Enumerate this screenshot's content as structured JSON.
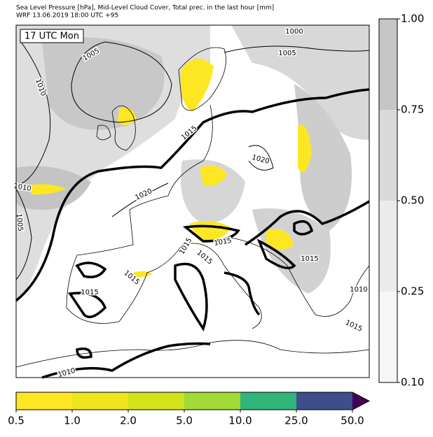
{
  "header": {
    "line1": "Sea Level Pressure [hPa], Mid-Level Cloud Cover, Total prec. in the last hour [mm]",
    "line2": "WRF 13.06.2019 18:00 UTC +95"
  },
  "time_label": "17 UTC Mon",
  "contour_labels": [
    "1005",
    "1010",
    "1000",
    "1005",
    "1015",
    "1020",
    "1010",
    "1005",
    "1020",
    "1015",
    "1015",
    "1015",
    "1015",
    "1015",
    "1015",
    "1010",
    "1015",
    "1010"
  ],
  "cloud_colorbar": {
    "ticks": [
      {
        "value": 0.1,
        "label": "0.10"
      },
      {
        "value": 0.25,
        "label": "0.25"
      },
      {
        "value": 0.5,
        "label": "0.50"
      },
      {
        "value": 0.75,
        "label": "0.75"
      },
      {
        "value": 1,
        "label": "1.00"
      }
    ],
    "colors": [
      "#f7f7f7",
      "#ebebeb",
      "#dadada",
      "#c6c6c6"
    ]
  },
  "precip_colorbar": {
    "ticks": [
      0.5,
      {
        "value": 1,
        "label": "1.0"
      },
      {
        "value": 2,
        "label": "2.0"
      },
      {
        "value": 5,
        "label": "5.0"
      },
      {
        "value": 10,
        "label": "10.0"
      },
      {
        "value": 25,
        "label": "25.0"
      },
      {
        "value": 50,
        "label": "50.0"
      }
    ],
    "colors": [
      "#fde725",
      "#eee51c",
      "#d2e21b",
      "#a2da37",
      "#30b57b",
      "#3d4e8a"
    ],
    "extend_color": "#440154"
  }
}
